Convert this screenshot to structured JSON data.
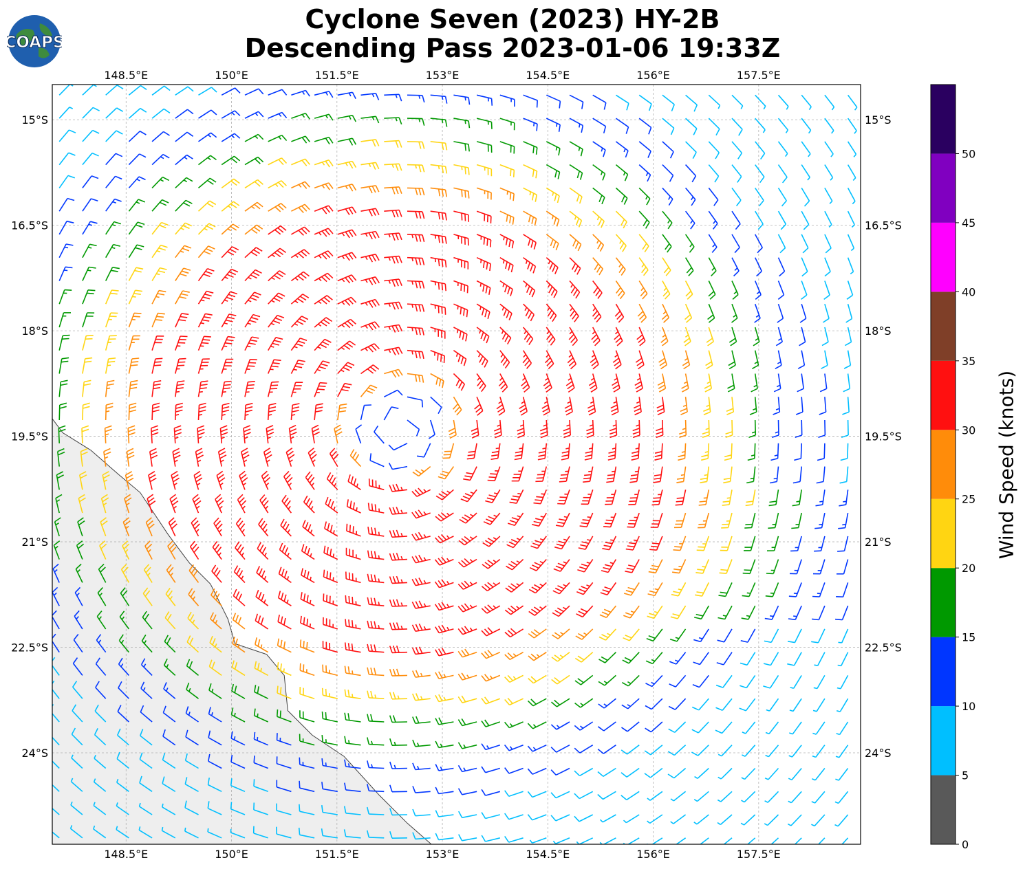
{
  "header": {
    "title_line1": "Cyclone Seven (2023) HY-2B",
    "title_line2": "Descending Pass 2023-01-06 19:33Z",
    "logo_text": "COAPS"
  },
  "chart_data": {
    "type": "wind_barb_map",
    "title": "Cyclone Seven (2023) HY-2B Descending Pass 2023-01-06 19:33Z",
    "lon_ticks": [
      "148.5°E",
      "150°E",
      "151.5°E",
      "153°E",
      "154.5°E",
      "156°E",
      "157.5°E"
    ],
    "lon_values": [
      148.5,
      150.0,
      151.5,
      153.0,
      154.5,
      156.0,
      157.5
    ],
    "lat_ticks": [
      "15°S",
      "16.5°S",
      "18°S",
      "19.5°S",
      "21°S",
      "22.5°S",
      "24°S"
    ],
    "lat_values": [
      -15.0,
      -16.5,
      -18.0,
      -19.5,
      -21.0,
      -22.5,
      -24.0
    ],
    "lon_range": [
      147.45,
      158.95
    ],
    "lat_range": [
      -25.3,
      -14.5
    ],
    "grid": true,
    "cyclone_center": {
      "lon": 152.4,
      "lat": -19.4
    },
    "colorbar": {
      "label": "Wind Speed (knots)",
      "ticks": [
        "0",
        "5",
        "10",
        "15",
        "20",
        "25",
        "30",
        "35",
        "40",
        "45",
        "50"
      ],
      "bins": [
        {
          "min": 0,
          "max": 5,
          "color": "#595959"
        },
        {
          "min": 5,
          "max": 10,
          "color": "#00bfff"
        },
        {
          "min": 10,
          "max": 15,
          "color": "#0036ff"
        },
        {
          "min": 15,
          "max": 20,
          "color": "#009900"
        },
        {
          "min": 20,
          "max": 25,
          "color": "#ffd512"
        },
        {
          "min": 25,
          "max": 30,
          "color": "#ff8c0a"
        },
        {
          "min": 30,
          "max": 35,
          "color": "#ff1010"
        },
        {
          "min": 35,
          "max": 40,
          "color": "#7f3f28"
        },
        {
          "min": 40,
          "max": 45,
          "color": "#ff00ff"
        },
        {
          "min": 45,
          "max": 50,
          "color": "#8000c0"
        },
        {
          "min": 50,
          "max": 55,
          "color": "#2a0060"
        }
      ]
    },
    "wind_field_colors": {
      "calm": "#595959",
      "light": "#00bfff",
      "moderate": "#0036ff",
      "fresh": "#009900",
      "strong": "#ffd512",
      "gale": "#ff8c0a",
      "storm": "#ff1010"
    },
    "land_color": "#eeeeee",
    "coastline_color": "#404040"
  }
}
